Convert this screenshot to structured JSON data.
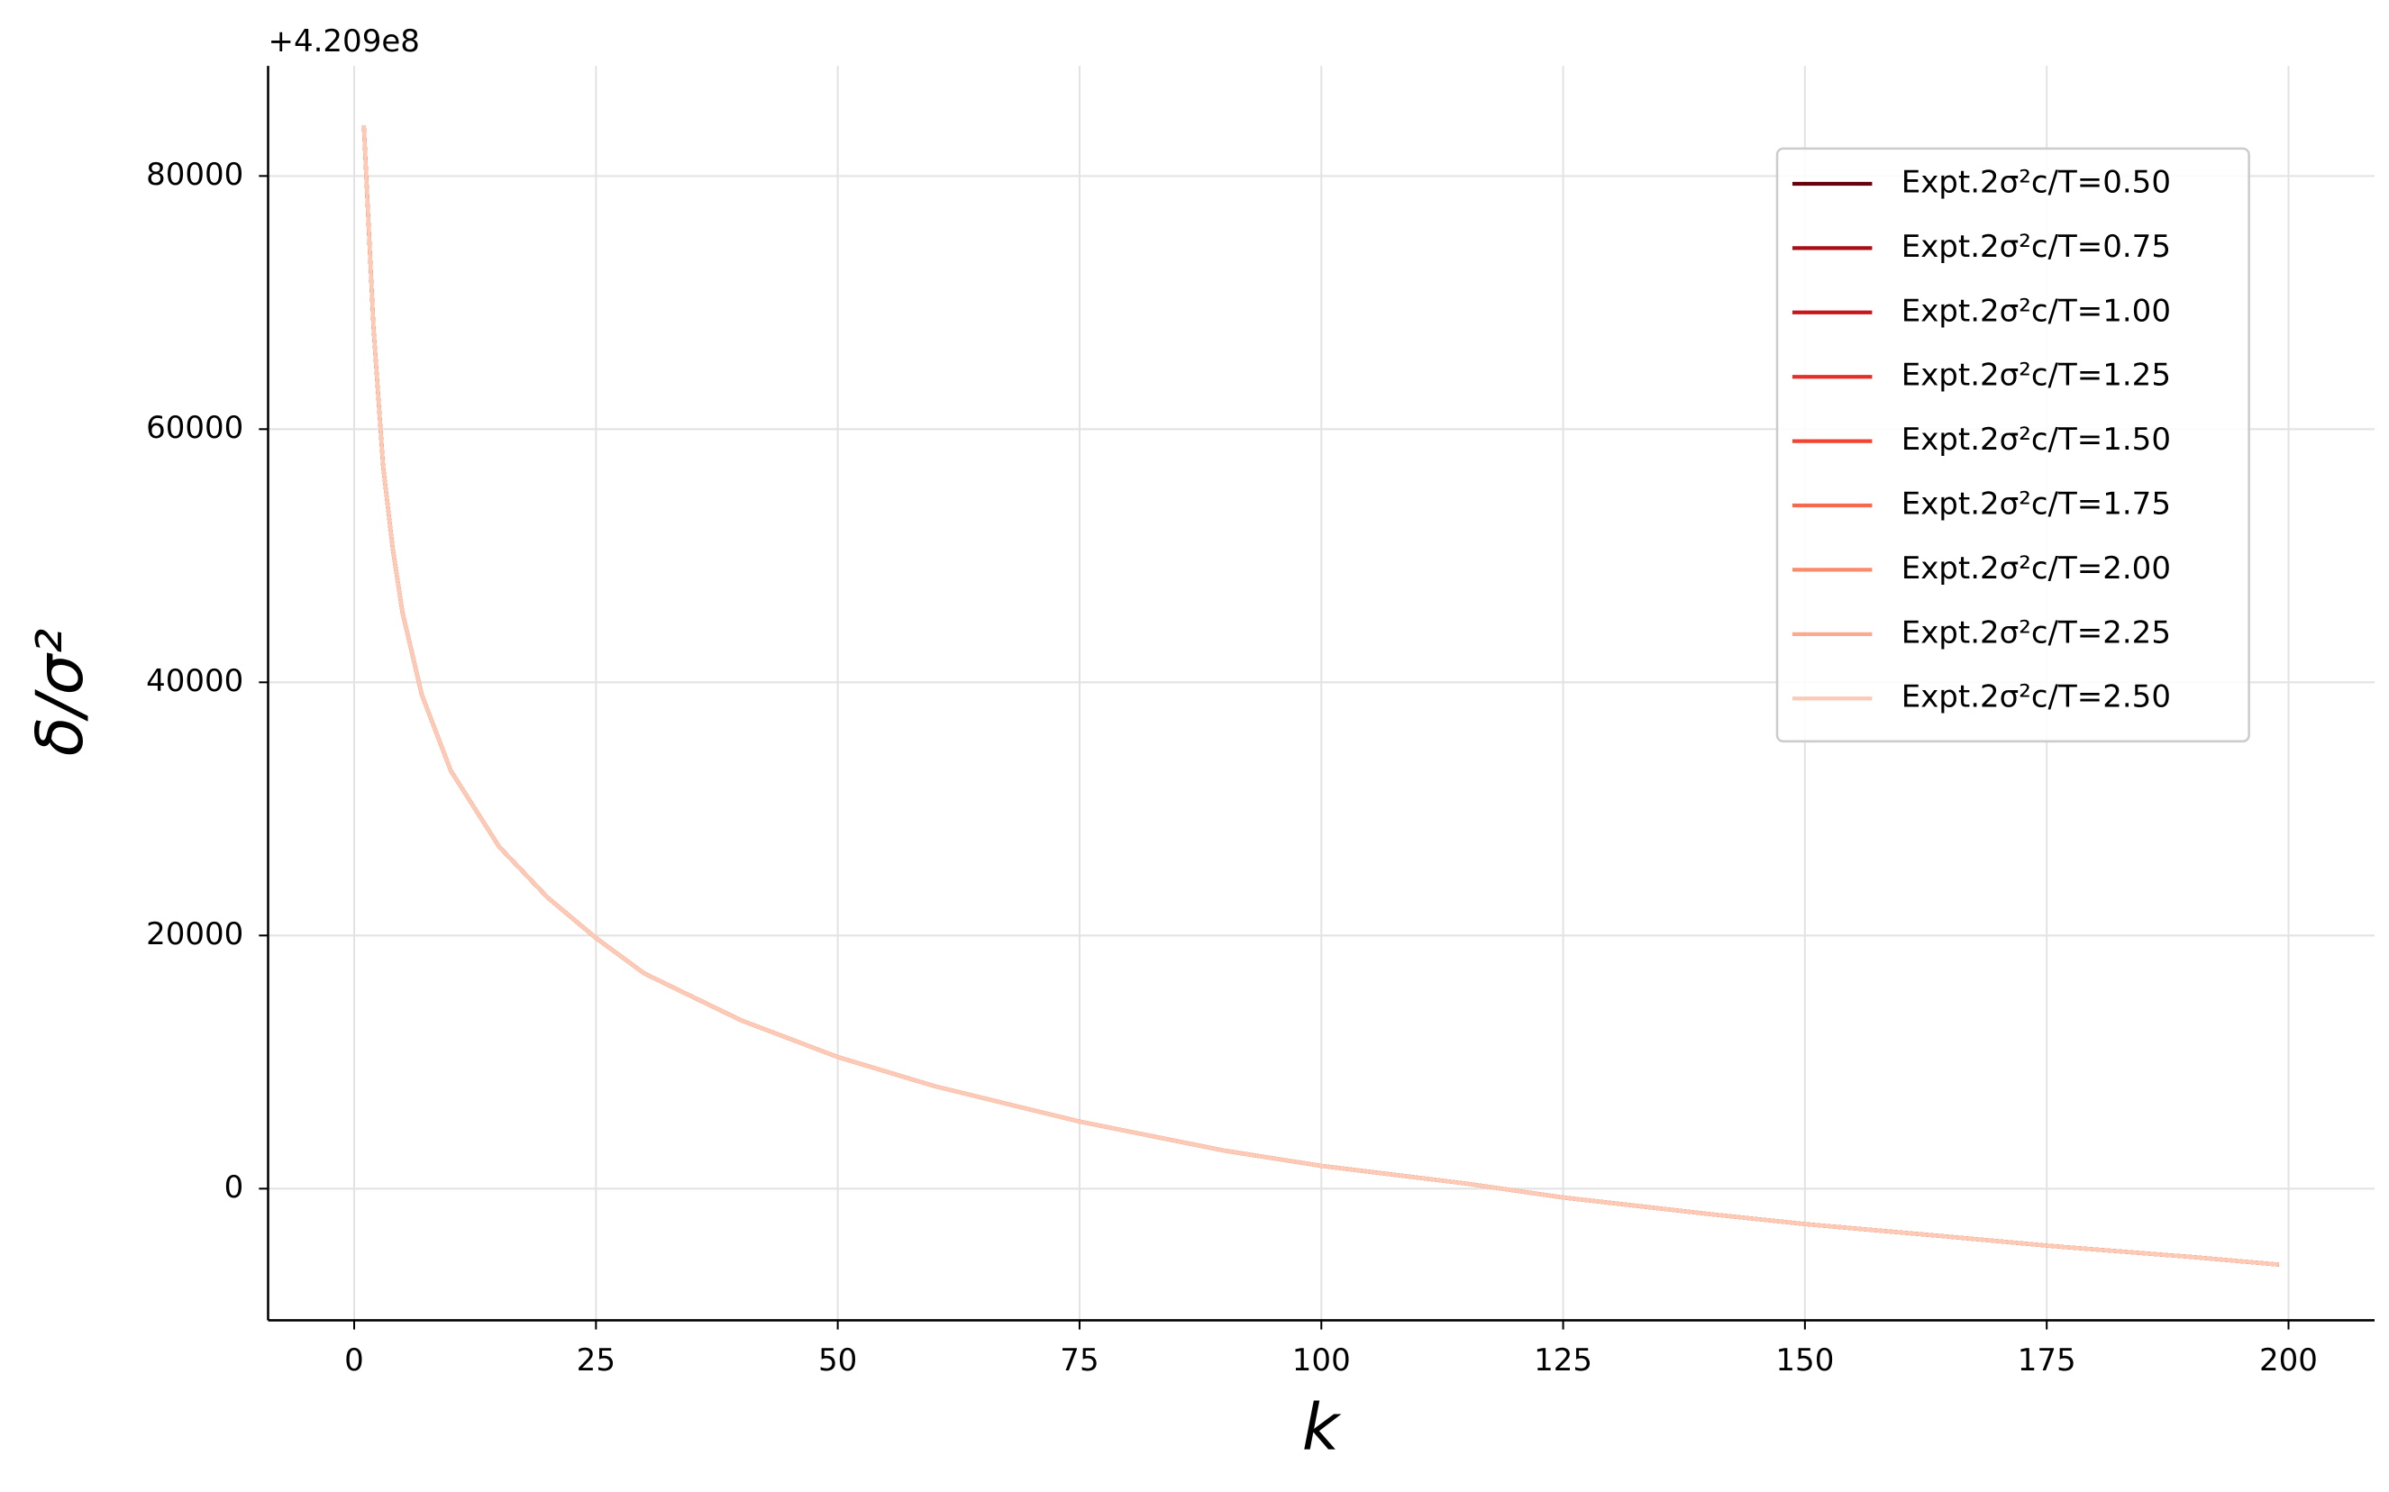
{
  "chart_data": {
    "type": "line",
    "x_label": "k",
    "y_label": "δ/σ²",
    "y_offset_label": "+4.209e8",
    "x": [
      1,
      2,
      3,
      4,
      5,
      7,
      10,
      15,
      20,
      25,
      30,
      40,
      50,
      60,
      75,
      90,
      100,
      115,
      125,
      140,
      150,
      165,
      175,
      190,
      199
    ],
    "series": [
      {
        "name": "Expt.2σ²c/T=0.50",
        "color": "#67000d",
        "values": [
          84000,
          68000,
          57000,
          50500,
          45500,
          39000,
          33000,
          27000,
          23000,
          19800,
          17000,
          13300,
          10400,
          8100,
          5300,
          3000,
          1800,
          400,
          -700,
          -2000,
          -2800,
          -3800,
          -4500,
          -5400,
          -6000
        ]
      },
      {
        "name": "Expt.2σ²c/T=0.75",
        "color": "#a50f15",
        "values": [
          84000,
          68000,
          57000,
          50500,
          45500,
          39000,
          33000,
          27000,
          23000,
          19800,
          17000,
          13300,
          10400,
          8100,
          5300,
          3000,
          1800,
          400,
          -700,
          -2000,
          -2800,
          -3800,
          -4500,
          -5400,
          -6000
        ]
      },
      {
        "name": "Expt.2σ²c/T=1.00",
        "color": "#c8171c",
        "values": [
          84000,
          68000,
          57000,
          50500,
          45500,
          39000,
          33000,
          27000,
          23000,
          19800,
          17000,
          13300,
          10400,
          8100,
          5300,
          3000,
          1800,
          400,
          -700,
          -2000,
          -2800,
          -3800,
          -4500,
          -5400,
          -6000
        ]
      },
      {
        "name": "Expt.2σ²c/T=1.25",
        "color": "#e32f27",
        "values": [
          84000,
          68000,
          57000,
          50500,
          45500,
          39000,
          33000,
          27000,
          23000,
          19800,
          17000,
          13300,
          10400,
          8100,
          5300,
          3000,
          1800,
          400,
          -700,
          -2000,
          -2800,
          -3800,
          -4500,
          -5400,
          -6000
        ]
      },
      {
        "name": "Expt.2σ²c/T=1.50",
        "color": "#f14432",
        "values": [
          84000,
          68000,
          57000,
          50500,
          45500,
          39000,
          33000,
          27000,
          23000,
          19800,
          17000,
          13300,
          10400,
          8100,
          5300,
          3000,
          1800,
          400,
          -700,
          -2000,
          -2800,
          -3800,
          -4500,
          -5400,
          -6000
        ]
      },
      {
        "name": "Expt.2σ²c/T=1.75",
        "color": "#f6694f",
        "values": [
          84000,
          68000,
          57000,
          50500,
          45500,
          39000,
          33000,
          27000,
          23000,
          19800,
          17000,
          13300,
          10400,
          8100,
          5300,
          3000,
          1800,
          400,
          -700,
          -2000,
          -2800,
          -3800,
          -4500,
          -5400,
          -6000
        ]
      },
      {
        "name": "Expt.2σ²c/T=2.00",
        "color": "#fb8a6a",
        "values": [
          84000,
          68000,
          57000,
          50500,
          45500,
          39000,
          33000,
          27000,
          23000,
          19800,
          17000,
          13300,
          10400,
          8100,
          5300,
          3000,
          1800,
          400,
          -700,
          -2000,
          -2800,
          -3800,
          -4500,
          -5400,
          -6000
        ]
      },
      {
        "name": "Expt.2σ²c/T=2.25",
        "color": "#fcaa8e",
        "values": [
          84000,
          68000,
          57000,
          50500,
          45500,
          39000,
          33000,
          27000,
          23000,
          19800,
          17000,
          13300,
          10400,
          8100,
          5300,
          3000,
          1800,
          400,
          -700,
          -2000,
          -2800,
          -3800,
          -4500,
          -5400,
          -6000
        ]
      },
      {
        "name": "Expt.2σ²c/T=2.50",
        "color": "#fdcab5",
        "values": [
          84000,
          68000,
          57000,
          50500,
          45500,
          39000,
          33000,
          27000,
          23000,
          19800,
          17000,
          13300,
          10400,
          8100,
          5300,
          3000,
          1800,
          400,
          -700,
          -2000,
          -2800,
          -3800,
          -4500,
          -5400,
          -6000
        ]
      }
    ],
    "xlim": [
      -8.9,
      208.9
    ],
    "xticks": [
      0,
      25,
      50,
      75,
      100,
      125,
      150,
      175,
      200
    ],
    "ylim": [
      -10400,
      88700
    ],
    "yticks": [
      0,
      20000,
      40000,
      60000,
      80000
    ],
    "grid": true,
    "legend": "upper right"
  }
}
